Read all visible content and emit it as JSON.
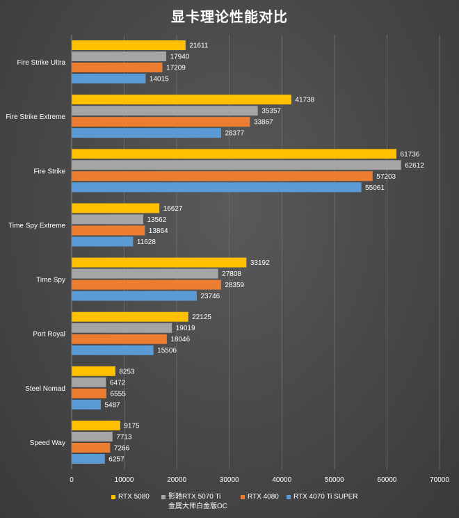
{
  "title": "显卡理论性能对比",
  "colors": {
    "series": [
      "#FFC000",
      "#A5A5A5",
      "#ED7D31",
      "#5B9BD5"
    ],
    "grid": "#6b6b6b",
    "text": "#ffffff"
  },
  "chart_data": {
    "type": "bar",
    "orientation": "horizontal",
    "title": "显卡理论性能对比",
    "xlabel": "",
    "ylabel": "",
    "xlim": [
      0,
      70000
    ],
    "xticks": [
      0,
      10000,
      20000,
      30000,
      40000,
      50000,
      60000,
      70000
    ],
    "grid": true,
    "legend_position": "bottom",
    "categories": [
      "Fire Strike Ultra",
      "Fire Strike Extreme",
      "Fire Strike",
      "Time Spy Extreme",
      "Time Spy",
      "Port Royal",
      "Steel Nomad",
      "Speed Way"
    ],
    "series": [
      {
        "name": "RTX 5080",
        "color": "#FFC000",
        "values": [
          21611,
          41738,
          61736,
          16627,
          33192,
          22125,
          8253,
          9175
        ]
      },
      {
        "name": "影驰RTX 5070 Ti 金属大师白金版OC",
        "color": "#A5A5A5",
        "values": [
          17940,
          35357,
          62612,
          13562,
          27808,
          19019,
          6472,
          7713
        ]
      },
      {
        "name": "RTX 4080",
        "color": "#ED7D31",
        "values": [
          17209,
          33867,
          57203,
          13864,
          28359,
          18046,
          6555,
          7266
        ]
      },
      {
        "name": "RTX 4070 Ti SUPER",
        "color": "#5B9BD5",
        "values": [
          14015,
          28377,
          55061,
          11628,
          23746,
          15506,
          5487,
          6257
        ]
      }
    ]
  },
  "legend": {
    "items": [
      {
        "label": "RTX 5080"
      },
      {
        "label": "影驰RTX 5070 Ti\n金属大师白金版OC"
      },
      {
        "label": "RTX 4080"
      },
      {
        "label": "RTX 4070 Ti SUPER"
      }
    ]
  }
}
